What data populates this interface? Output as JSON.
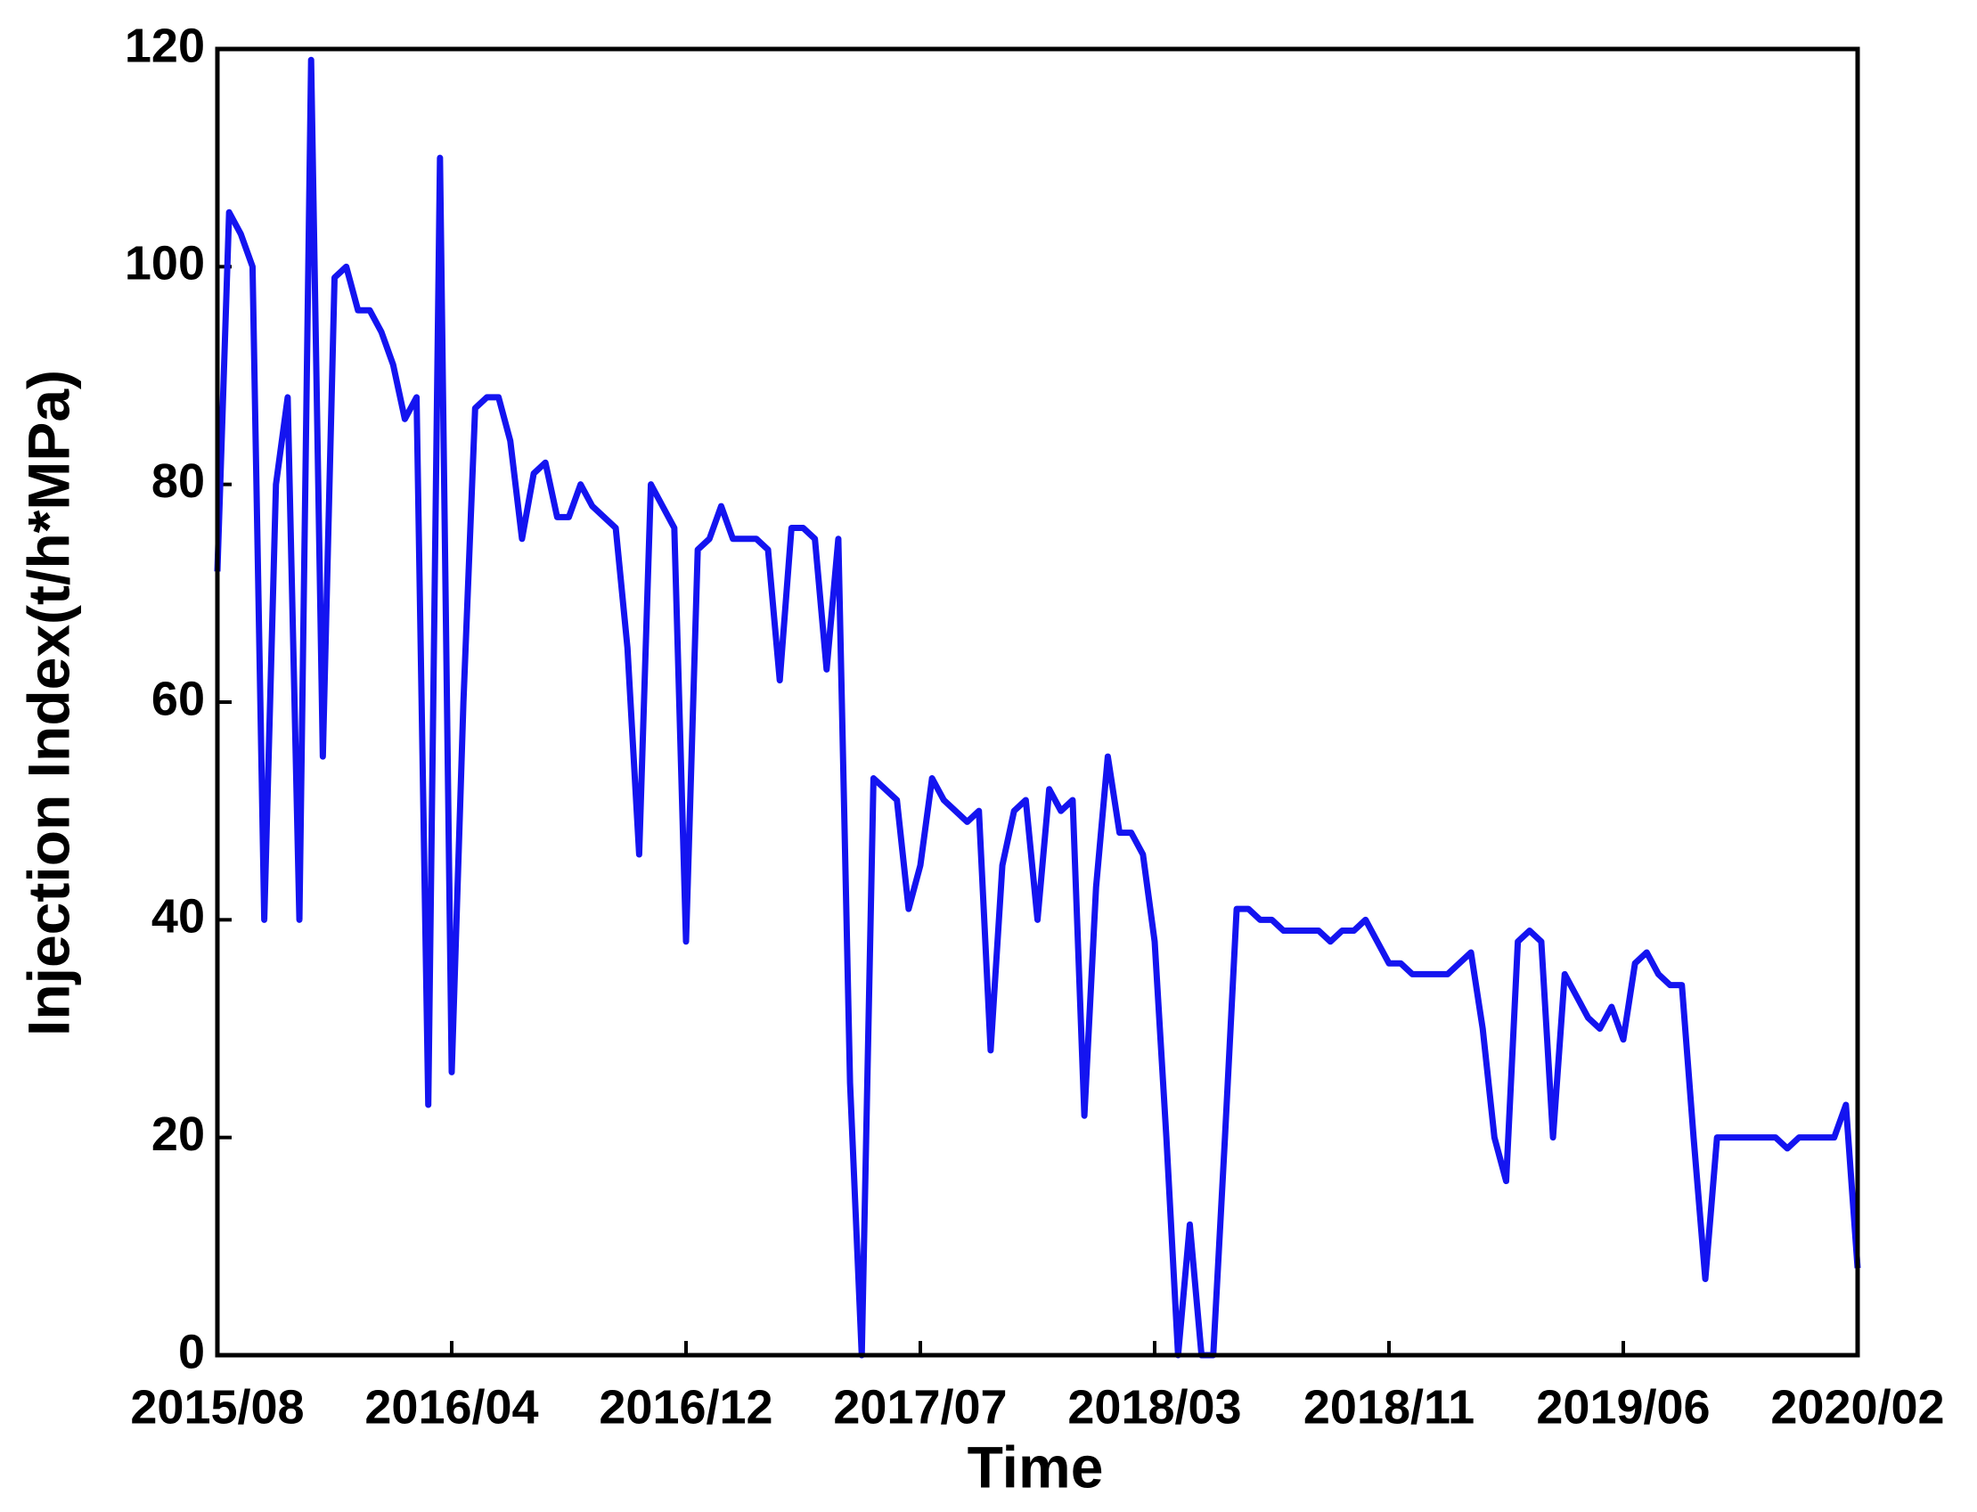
{
  "chart_data": {
    "type": "line",
    "x_label": "Time",
    "y_label": "Injection Index(t/h*MPa)",
    "categories": [
      "2015/08",
      null,
      null,
      null,
      null,
      null,
      null,
      null,
      null,
      null,
      null,
      null,
      null,
      null,
      null,
      null,
      null,
      null,
      null,
      null,
      "2016/04",
      null,
      null,
      null,
      null,
      null,
      null,
      null,
      null,
      null,
      null,
      null,
      null,
      null,
      null,
      null,
      null,
      null,
      null,
      null,
      "2016/12",
      null,
      null,
      null,
      null,
      null,
      null,
      null,
      null,
      null,
      null,
      null,
      null,
      null,
      null,
      null,
      null,
      null,
      null,
      null,
      "2017/07",
      null,
      null,
      null,
      null,
      null,
      null,
      null,
      null,
      null,
      null,
      null,
      null,
      null,
      null,
      null,
      null,
      null,
      null,
      null,
      "2018/03",
      null,
      null,
      null,
      null,
      null,
      null,
      null,
      null,
      null,
      null,
      null,
      null,
      null,
      null,
      null,
      null,
      null,
      null,
      null,
      "2018/11",
      null,
      null,
      null,
      null,
      null,
      null,
      null,
      null,
      null,
      null,
      null,
      null,
      null,
      null,
      null,
      null,
      null,
      null,
      null,
      "2019/06",
      null,
      null,
      null,
      null,
      null,
      null,
      null,
      null,
      null,
      null,
      null,
      null,
      null,
      null,
      null,
      null,
      null,
      null,
      null,
      "2020/02"
    ],
    "series": [
      {
        "color": "#1414f0",
        "values": [
          72,
          105,
          103,
          100,
          40,
          80,
          88,
          40,
          119,
          55,
          99,
          100,
          96,
          96,
          94,
          91,
          86,
          88,
          23,
          110,
          26,
          60,
          87,
          88,
          88,
          84,
          75,
          81,
          82,
          77,
          77,
          80,
          78,
          77,
          76,
          65,
          46,
          80,
          78,
          76,
          38,
          74,
          75,
          78,
          75,
          75,
          75,
          74,
          62,
          76,
          76,
          75,
          63,
          75,
          25,
          0,
          53,
          52,
          51,
          41,
          45,
          53,
          51,
          50,
          49,
          50,
          28,
          45,
          50,
          51,
          40,
          52,
          50,
          51,
          22,
          43,
          55,
          48,
          48,
          46,
          38,
          20,
          0,
          12,
          0,
          0,
          20,
          41,
          41,
          40,
          40,
          39,
          39,
          39,
          39,
          38,
          39,
          39,
          40,
          38,
          36,
          36,
          35,
          35,
          35,
          35,
          36,
          37,
          30,
          20,
          16,
          38,
          39,
          38,
          20,
          35,
          33,
          31,
          30,
          32,
          29,
          36,
          37,
          35,
          34,
          34,
          20,
          7,
          20,
          20,
          20,
          20,
          20,
          20,
          19,
          20,
          20,
          20,
          20,
          23,
          8
        ]
      }
    ],
    "ylim": [
      0,
      120
    ],
    "yticks": [
      0,
      20,
      40,
      60,
      80,
      100,
      120
    ]
  }
}
